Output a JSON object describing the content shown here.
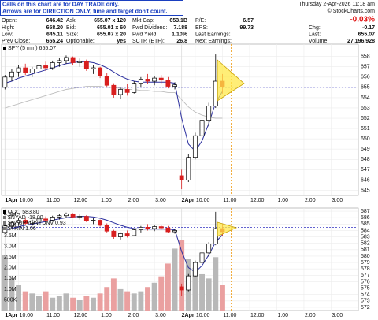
{
  "header": {
    "notice": [
      "Calls on this chart are for DAY TRADE only.",
      "Arrows are for DIRECTION ONLY, time and target don't count."
    ],
    "datetime": "Thursday  2-Apr-2026  11:18 am",
    "copyright": "© StockCharts.com",
    "change_pct": "-0.03%",
    "columns": [
      [
        {
          "label": "Open:",
          "value": "646.42"
        },
        {
          "label": "High:",
          "value": "658.20"
        },
        {
          "label": "Low:",
          "value": "645.11"
        },
        {
          "label": "Prev Close:",
          "value": "655.24"
        }
      ],
      [
        {
          "label": "Ask:",
          "value": "655.07 x 120"
        },
        {
          "label": "Bid:",
          "value": "655.01 x 60"
        },
        {
          "label": "Size:",
          "value": "655.07 x 20"
        },
        {
          "label": "Optionable:",
          "value": "yes"
        }
      ],
      [
        {
          "label": "Mkt Cap:",
          "value": "653.1B"
        },
        {
          "label": "Fwd Dividend:",
          "value": "7.188"
        },
        {
          "label": "Fwd Yield:",
          "value": "1.10%"
        },
        {
          "label": "SCTR (ETF):",
          "value": "26.8"
        }
      ],
      [
        {
          "label": "P/E:",
          "value": "6.57"
        },
        {
          "label": "EPS:",
          "value": "99.73"
        },
        {
          "label": "Last Earnings:"
        },
        {
          "label": "Next Earnings:"
        }
      ]
    ],
    "right_fields": [
      {
        "label": "Chg:",
        "value": "-0.17"
      },
      {
        "label": "Last:",
        "value": "655.07"
      },
      {
        "label": "Volume:",
        "value": "27,196,928"
      }
    ]
  },
  "chart_data": [
    {
      "type": "candlestick",
      "legend": [
        "SPY (5 min) 655.07"
      ],
      "x": [
        0,
        1,
        2,
        3,
        4,
        5,
        6,
        7,
        8,
        9,
        10,
        11,
        12,
        13,
        14,
        15,
        16,
        17,
        18,
        19,
        20,
        21,
        22,
        23,
        24,
        25,
        26,
        27,
        28,
        29,
        30,
        31,
        32
      ],
      "xlim": [
        -0.5,
        52
      ],
      "xticks": [
        {
          "value": 2,
          "label": "10:00"
        },
        {
          "value": 6,
          "label": "11:00"
        },
        {
          "value": 10,
          "label": "12:00"
        },
        {
          "value": 14,
          "label": "1:00"
        },
        {
          "value": 18,
          "label": "2:00"
        },
        {
          "value": 22,
          "label": "3:00"
        },
        {
          "value": 28,
          "label": "10:00"
        },
        {
          "value": 32,
          "label": "11:00"
        },
        {
          "value": 36,
          "label": "12:00"
        },
        {
          "value": 40,
          "label": "1:00"
        },
        {
          "value": 44,
          "label": "2:00"
        },
        {
          "value": 48,
          "label": "3:00"
        }
      ],
      "date_ticks": [
        {
          "value": 0,
          "label": "1Apr"
        },
        {
          "value": 26,
          "label": "2Apr"
        }
      ],
      "ohlc": [
        [
          655.0,
          656.2,
          654.8,
          656.0
        ],
        [
          656.0,
          656.8,
          655.6,
          656.5
        ],
        [
          656.5,
          657.2,
          656.0,
          656.9
        ],
        [
          656.9,
          657.3,
          656.2,
          656.4
        ],
        [
          656.4,
          657.0,
          656.0,
          656.8
        ],
        [
          656.8,
          657.4,
          656.5,
          657.1
        ],
        [
          657.1,
          657.5,
          656.6,
          656.9
        ],
        [
          656.9,
          657.6,
          656.7,
          657.4
        ],
        [
          657.4,
          657.9,
          657.0,
          657.6
        ],
        [
          657.6,
          658.1,
          657.3,
          657.9
        ],
        [
          657.9,
          658.0,
          657.2,
          657.4
        ],
        [
          657.4,
          657.8,
          657.0,
          657.5
        ],
        [
          657.5,
          657.7,
          656.6,
          656.8
        ],
        [
          656.8,
          657.2,
          656.3,
          656.9
        ],
        [
          656.9,
          657.0,
          655.9,
          656.1
        ],
        [
          656.1,
          656.4,
          655.0,
          655.2
        ],
        [
          655.2,
          655.4,
          654.0,
          654.3
        ],
        [
          654.3,
          655.0,
          653.9,
          654.8
        ],
        [
          654.8,
          655.3,
          654.2,
          654.5
        ],
        [
          654.5,
          655.6,
          654.4,
          655.4
        ],
        [
          655.4,
          656.0,
          655.0,
          655.8
        ],
        [
          655.8,
          656.3,
          655.3,
          655.6
        ],
        [
          655.6,
          656.1,
          655.2,
          655.9
        ],
        [
          655.9,
          656.2,
          655.4,
          655.7
        ],
        [
          655.7,
          656.0,
          654.9,
          655.1
        ],
        [
          655.1,
          655.5,
          654.8,
          655.24
        ],
        [
          646.42,
          647.0,
          645.11,
          646.0
        ],
        [
          646.0,
          648.5,
          645.8,
          648.2
        ],
        [
          648.2,
          650.6,
          648.0,
          650.3
        ],
        [
          650.3,
          652.2,
          650.0,
          651.8
        ],
        [
          651.8,
          653.5,
          651.2,
          653.2
        ],
        [
          653.2,
          658.2,
          653.0,
          655.6
        ],
        [
          655.6,
          656.3,
          654.4,
          655.07
        ]
      ],
      "up_color": "#000000",
      "down_color": "#d81e1e",
      "ma": [
        655.4,
        655.6,
        655.9,
        656.1,
        656.3,
        656.5,
        656.7,
        656.9,
        657.1,
        657.3,
        657.4,
        657.5,
        657.5,
        657.4,
        657.2,
        656.9,
        656.5,
        656.1,
        655.8,
        655.6,
        655.5,
        655.5,
        655.5,
        655.5,
        655.5,
        655.4,
        652.0,
        649.5,
        648.8,
        649.8,
        651.5,
        653.5,
        654.6
      ],
      "ma_color": "#2b2f9e",
      "ma2": [
        653.0,
        653.2,
        653.4,
        653.6,
        653.8,
        654.0,
        654.2,
        654.4,
        654.6,
        654.8,
        654.9,
        655.0,
        655.1,
        655.1,
        655.1,
        655.0,
        655.0,
        654.9,
        654.8,
        654.8,
        654.7,
        654.7,
        654.6,
        654.6,
        654.5,
        654.5,
        653.8,
        653.1,
        652.6,
        652.3,
        652.1,
        652.0,
        652.0
      ],
      "ma2_color": "#bdbdbd",
      "ylim": [
        644.5,
        659.2
      ],
      "yticks": [
        645,
        646,
        647,
        648,
        649,
        650,
        651,
        652,
        653,
        654,
        655,
        656,
        657,
        658
      ],
      "hline": 655,
      "hline_color": "#3030c0",
      "vline": 33.3,
      "vline_color": "#f0a020",
      "grid": true
    },
    {
      "type": "candlestick",
      "legend": [
        "QQQ 583.80",
        "$NYAD -18.00",
        "$NYUPV:$NYDNV 0.93",
        "$TRIN 1.06"
      ],
      "x": [
        0,
        1,
        2,
        3,
        4,
        5,
        6,
        7,
        8,
        9,
        10,
        11,
        12,
        13,
        14,
        15,
        16,
        17,
        18,
        19,
        20,
        21,
        22,
        23,
        24,
        25,
        26,
        27,
        28,
        29,
        30,
        31,
        32
      ],
      "xlim": [
        -0.5,
        52
      ],
      "ohlc": [
        [
          583.7,
          584.9,
          583.5,
          584.7
        ],
        [
          584.7,
          585.5,
          584.3,
          585.2
        ],
        [
          585.2,
          585.9,
          584.7,
          585.6
        ],
        [
          585.6,
          586.0,
          584.9,
          585.1
        ],
        [
          585.1,
          585.7,
          584.7,
          585.5
        ],
        [
          585.5,
          586.1,
          585.2,
          585.8
        ],
        [
          585.8,
          586.2,
          585.3,
          585.6
        ],
        [
          585.6,
          586.3,
          585.4,
          586.1
        ],
        [
          586.1,
          586.6,
          585.7,
          586.3
        ],
        [
          586.3,
          586.8,
          586.0,
          586.6
        ],
        [
          586.6,
          586.7,
          585.9,
          586.1
        ],
        [
          586.1,
          586.5,
          585.7,
          586.2
        ],
        [
          586.2,
          586.4,
          585.3,
          585.5
        ],
        [
          585.5,
          585.9,
          585.0,
          585.6
        ],
        [
          585.6,
          585.7,
          584.6,
          584.8
        ],
        [
          584.8,
          585.1,
          583.7,
          583.9
        ],
        [
          583.9,
          584.1,
          582.7,
          583.0
        ],
        [
          583.0,
          583.7,
          582.6,
          583.5
        ],
        [
          583.5,
          584.0,
          582.9,
          583.2
        ],
        [
          583.2,
          584.3,
          583.1,
          584.1
        ],
        [
          584.1,
          584.7,
          583.7,
          584.5
        ],
        [
          584.5,
          585.0,
          584.0,
          584.3
        ],
        [
          584.3,
          584.8,
          583.9,
          584.6
        ],
        [
          584.6,
          584.9,
          584.1,
          584.4
        ],
        [
          584.4,
          584.7,
          583.6,
          583.8
        ],
        [
          583.8,
          584.2,
          583.5,
          584.0
        ],
        [
          575.2,
          575.7,
          573.8,
          574.7
        ],
        [
          574.7,
          577.2,
          574.5,
          576.9
        ],
        [
          576.9,
          579.3,
          576.7,
          579.0
        ],
        [
          579.0,
          580.9,
          578.7,
          580.5
        ],
        [
          580.5,
          582.2,
          579.9,
          581.9
        ],
        [
          581.9,
          586.9,
          581.7,
          584.3
        ],
        [
          584.3,
          585.0,
          583.1,
          583.8
        ]
      ],
      "up_color": "#000000",
      "down_color": "#d81e1e",
      "ma": [
        584.1,
        584.3,
        584.6,
        584.8,
        585.0,
        585.2,
        585.4,
        585.6,
        585.8,
        586.0,
        586.1,
        586.2,
        586.2,
        586.1,
        585.9,
        585.6,
        585.2,
        584.8,
        584.5,
        584.3,
        584.2,
        584.2,
        584.2,
        584.2,
        584.2,
        584.1,
        580.7,
        578.2,
        577.5,
        578.5,
        580.2,
        582.2,
        583.3
      ],
      "ma_color": "#2b2f9e",
      "ylim": [
        571.5,
        587.5
      ],
      "yticks": [
        572,
        573,
        574,
        575,
        576,
        577,
        578,
        579,
        580,
        581,
        582,
        583,
        584,
        585,
        586,
        587
      ],
      "hline": 584.5,
      "hline_color": "#3030c0",
      "volume": [
        2600000,
        1500000,
        1200000,
        900000,
        800000,
        700000,
        900000,
        600000,
        700000,
        800000,
        600000,
        500000,
        700000,
        600000,
        800000,
        1100000,
        1500000,
        1000000,
        900000,
        800000,
        900000,
        1100000,
        1300000,
        1600000,
        2200000,
        2900000,
        3300000,
        2400000,
        2000000,
        1700000,
        1500000,
        2500000,
        1200000
      ],
      "volume_color": "#b8b8b8",
      "volume_down_color": "#eaa0a0",
      "y2lim": [
        0,
        4800000
      ],
      "y2ticks": [
        {
          "value": 500000,
          "label": "500K"
        },
        {
          "value": 1000000,
          "label": "1.0M"
        },
        {
          "value": 1500000,
          "label": "1.5M"
        },
        {
          "value": 2000000,
          "label": "2.0M"
        },
        {
          "value": 2500000,
          "label": "2.5M"
        },
        {
          "value": 3000000,
          "label": "3.0M"
        },
        {
          "value": 3500000,
          "label": "3.5M"
        },
        {
          "value": 4000000,
          "label": "4.0M"
        },
        {
          "value": 4500000,
          "label": "4.5M"
        }
      ],
      "grid": true
    }
  ]
}
